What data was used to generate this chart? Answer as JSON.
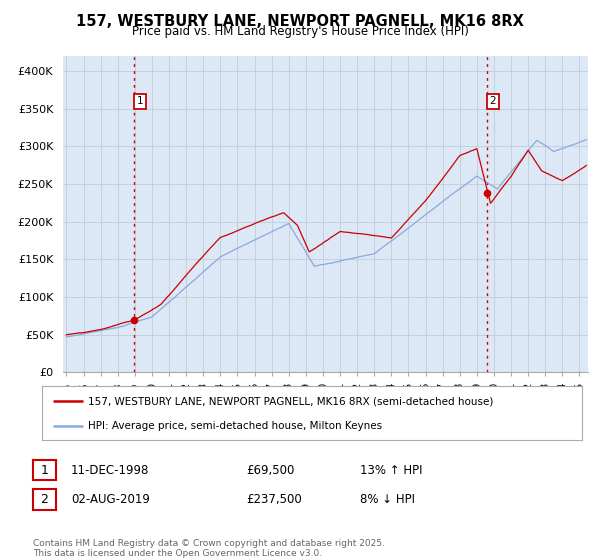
{
  "title": "157, WESTBURY LANE, NEWPORT PAGNELL, MK16 8RX",
  "subtitle": "Price paid vs. HM Land Registry's House Price Index (HPI)",
  "legend_line1": "157, WESTBURY LANE, NEWPORT PAGNELL, MK16 8RX (semi-detached house)",
  "legend_line2": "HPI: Average price, semi-detached house, Milton Keynes",
  "annotation1_label": "1",
  "annotation1_date": "11-DEC-1998",
  "annotation1_price": "£69,500",
  "annotation1_hpi": "13% ↑ HPI",
  "annotation2_label": "2",
  "annotation2_date": "02-AUG-2019",
  "annotation2_price": "£237,500",
  "annotation2_hpi": "8% ↓ HPI",
  "footer": "Contains HM Land Registry data © Crown copyright and database right 2025.\nThis data is licensed under the Open Government Licence v3.0.",
  "property_color": "#cc0000",
  "hpi_color": "#88aadd",
  "background_color": "#dce8f5",
  "grid_color": "#c0ccd8",
  "vline_color": "#cc0000",
  "marker1_x": 1998.95,
  "marker1_y": 69500,
  "marker2_x": 2019.58,
  "marker2_y": 237500,
  "ylim": [
    0,
    420000
  ],
  "xlim_start": 1994.8,
  "xlim_end": 2025.5,
  "x_tick_years": [
    1995,
    1996,
    1997,
    1998,
    1999,
    2000,
    2001,
    2002,
    2003,
    2004,
    2005,
    2006,
    2007,
    2008,
    2009,
    2010,
    2011,
    2012,
    2013,
    2014,
    2015,
    2016,
    2017,
    2018,
    2019,
    2020,
    2021,
    2022,
    2023,
    2024,
    2025
  ],
  "y_ticks": [
    0,
    50000,
    100000,
    150000,
    200000,
    250000,
    300000,
    350000,
    400000
  ],
  "y_tick_labels": [
    "£0",
    "£50K",
    "£100K",
    "£150K",
    "£200K",
    "£250K",
    "£300K",
    "£350K",
    "£400K"
  ]
}
